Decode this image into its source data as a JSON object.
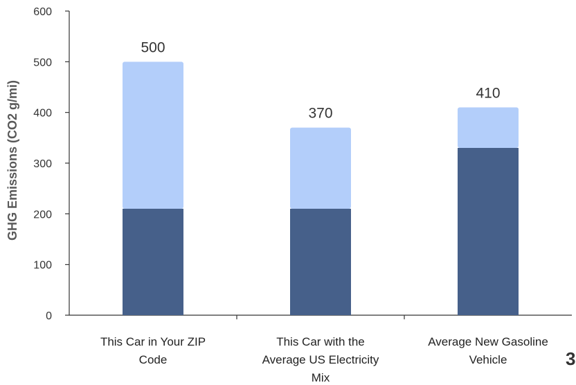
{
  "chart_data": {
    "type": "bar",
    "stacked": true,
    "categories": [
      [
        "This Car in Your ZIP",
        "Code"
      ],
      [
        "This Car with the",
        "Average US Electricity",
        "Mix"
      ],
      [
        "Average New Gasoline",
        "Vehicle"
      ]
    ],
    "series": [
      {
        "values": [
          210,
          210,
          330
        ],
        "color": "#46608a"
      },
      {
        "values": [
          290,
          160,
          80
        ],
        "color": "#b3cefa"
      }
    ],
    "totals": [
      "500",
      "370",
      "410"
    ],
    "ylabel": "GHG Emissions (CO2 g/mi)",
    "ylim": [
      0,
      600
    ],
    "yticks": [
      0,
      100,
      200,
      300,
      400,
      500,
      600
    ],
    "grid": false
  },
  "page_fragment": "3"
}
